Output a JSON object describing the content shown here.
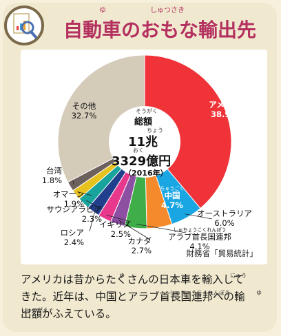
{
  "header": {
    "title": "自動車のおもな輸出先",
    "title_ruby_yu": "ゆ",
    "title_ruby_shussaki": "しゅつさき",
    "icon": "chart-report-magnifier-icon"
  },
  "center": {
    "ruby_sougaku": "そうがく",
    "label": "総額",
    "ruby_chou": "ちょう",
    "line1": "11兆",
    "ruby_oku": "おく",
    "line2": "3329億円",
    "year": "（2016年）"
  },
  "chart_data": {
    "type": "pie",
    "unit": "%",
    "slices": [
      {
        "name": "アメリカ",
        "value": 38.9,
        "color": "#ef3338",
        "ruby": ""
      },
      {
        "name": "オーストラリア",
        "value": 6.0,
        "color": "#19a6e3",
        "ruby": ""
      },
      {
        "name": "中国",
        "value": 4.7,
        "color": "#f58a2c",
        "ruby": "ちゅうごく"
      },
      {
        "name": "アラブ首長国連邦",
        "value": 4.1,
        "color": "#3fae48",
        "ruby": "しゅちょうこくれんぽう"
      },
      {
        "name": "カナダ",
        "value": 2.7,
        "color": "#8c4fa2",
        "ruby": ""
      },
      {
        "name": "イギリス",
        "value": 2.5,
        "color": "#e8388e",
        "ruby": ""
      },
      {
        "name": "ロシア",
        "value": 2.4,
        "color": "#223f8e",
        "ruby": ""
      },
      {
        "name": "サウジアラビア",
        "value": 2.3,
        "color": "#18a49c",
        "ruby": ""
      },
      {
        "name": "オマーン",
        "value": 1.9,
        "color": "#e6c21f",
        "ruby": ""
      },
      {
        "name": "台湾",
        "value": 1.8,
        "color": "#6c615c",
        "ruby": ""
      },
      {
        "name": "その他",
        "value": 32.7,
        "color": "#d4cbb9",
        "ruby": ""
      }
    ]
  },
  "source": "財務省「貿易統計」",
  "caption": {
    "line1": "アメリカは昔からたくさんの日本車を輸入して",
    "line2": "きた。近年は、中国とアラブ首長国連邦への輸",
    "line3": "出額がふえている。",
    "ruby_yu": "ゆ",
    "ruby_nyuu": "にゅう",
    "ruby_shuchoukoku": "しゅちょうこくれんぽう",
    "ruby_yu2": "ゆ",
    "ruby_shutsugaku": "しゅつがく"
  }
}
